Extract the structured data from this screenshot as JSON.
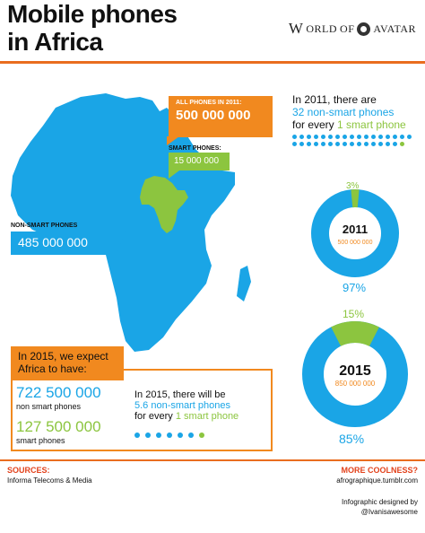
{
  "header": {
    "title_line1": "Mobile phones",
    "title_line2": "in Africa",
    "logo": "WORLD OF AVATAR",
    "logo_parts": [
      "W",
      "ORLD",
      "OF",
      "AVATAR"
    ]
  },
  "callouts": {
    "all_phones_label": "ALL PHONES IN 2011:",
    "all_phones_value": "500 000 000",
    "smart_label": "SMART PHONES:",
    "smart_value": "15 000 000",
    "non_smart_label": "NON-SMART PHONES",
    "non_smart_value": "485 000 000"
  },
  "stat_2011": {
    "line1": "In 2011, there are",
    "line2": "32 non-smart phones",
    "line3_prefix": "for every ",
    "line3_highlight": "1 smart phone",
    "blue_dots": 32,
    "green_dots": 1
  },
  "donut_2011": {
    "year": "2011",
    "total": "500 000 000",
    "smart_pct": "3%",
    "non_smart_pct": "97%",
    "smart_fraction": 0.03
  },
  "donut_2015": {
    "year": "2015",
    "total": "850 000 000",
    "smart_pct": "15%",
    "non_smart_pct": "85%",
    "smart_fraction": 0.15
  },
  "expect_2015": {
    "header_line1": "In 2015, we expect",
    "header_line2": "Africa to have:",
    "non_smart_value": "722 500 000",
    "non_smart_label": "non smart phones",
    "smart_value": "127 500 000",
    "smart_label": "smart phones"
  },
  "stat_2015": {
    "line1": "In 2015, there will be",
    "line2": "5.6 non-smart phones",
    "line3_prefix": "for every ",
    "line3_highlight": "1 smart phone",
    "blue_dots": 6,
    "green_dots": 1
  },
  "footer": {
    "sources_title": "SOURCES:",
    "sources_text": "Informa Telecoms & Media",
    "more_title": "MORE COOLNESS?",
    "more_link": "afrographique.tumblr.com",
    "designed_by": "Infographic designed by",
    "designer": "@Ivanisawesome"
  },
  "colors": {
    "blue": "#1aa5e6",
    "green": "#8cc53f",
    "orange": "#f1891f",
    "red": "#e2421c"
  }
}
